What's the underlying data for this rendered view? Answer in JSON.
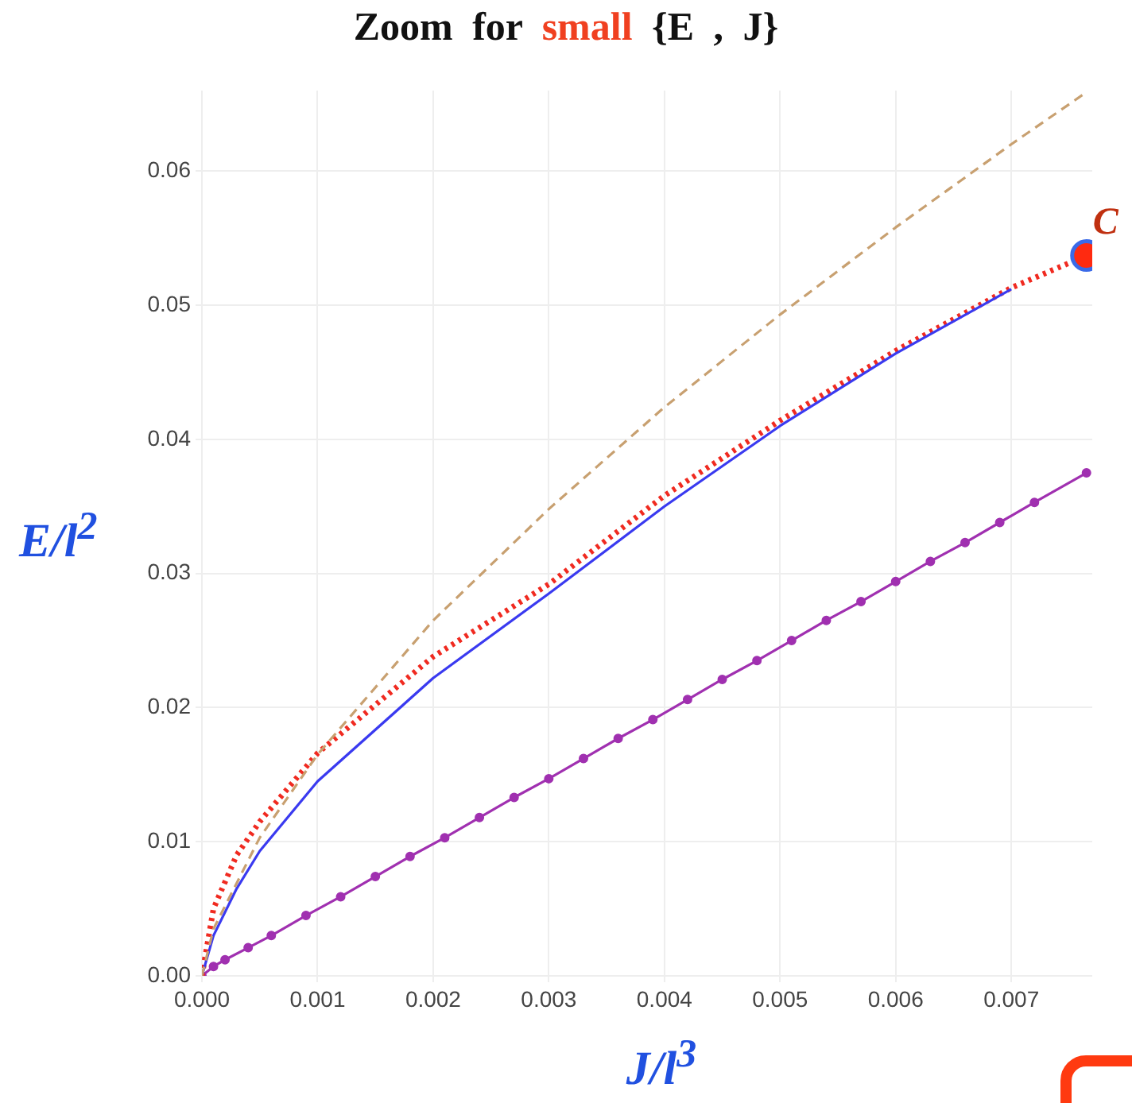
{
  "chart_data": {
    "type": "line",
    "title": "Zoom for small {E , J}",
    "xlabel": "J/l$^{3}$",
    "ylabel": "E/l$^{2}$",
    "xlim": [
      0,
      0.0077
    ],
    "ylim": [
      0,
      0.066
    ],
    "xticks": [
      {
        "value": 0,
        "label": "0.000"
      },
      {
        "value": 0.001,
        "label": "0.001"
      },
      {
        "value": 0.002,
        "label": "0.002"
      },
      {
        "value": 0.003,
        "label": "0.003"
      },
      {
        "value": 0.004,
        "label": "0.004"
      },
      {
        "value": 0.005,
        "label": "0.005"
      },
      {
        "value": 0.006,
        "label": "0.006"
      },
      {
        "value": 0.007,
        "label": "0.007"
      }
    ],
    "yticks": [
      {
        "value": 0,
        "label": "0.00"
      },
      {
        "value": 0.01,
        "label": "0.01"
      },
      {
        "value": 0.02,
        "label": "0.02"
      },
      {
        "value": 0.03,
        "label": "0.03"
      },
      {
        "value": 0.04,
        "label": "0.04"
      },
      {
        "value": 0.05,
        "label": "0.05"
      },
      {
        "value": 0.06,
        "label": "0.06"
      }
    ],
    "grid": true,
    "legend": false,
    "series": [
      {
        "color": "#c8a070",
        "line_style": "dashed",
        "marker": "none",
        "x": [
          0,
          0.0001,
          0.0005,
          0.001,
          0.002,
          0.003,
          0.004,
          0.005,
          0.006,
          0.007,
          0.00762
        ],
        "values": [
          0,
          0.0035,
          0.0103,
          0.0165,
          0.0265,
          0.0348,
          0.0424,
          0.0493,
          0.0558,
          0.062,
          0.0657
        ]
      },
      {
        "color": "#3a3af0",
        "line_style": "solid",
        "marker": "none",
        "x": [
          0,
          0.0001,
          0.0003,
          0.0005,
          0.001,
          0.002,
          0.003,
          0.004,
          0.005,
          0.006,
          0.007
        ],
        "values": [
          0,
          0.003,
          0.0065,
          0.0093,
          0.0145,
          0.0222,
          0.0285,
          0.035,
          0.041,
          0.0464,
          0.0512
        ]
      },
      {
        "color": "#f02a20",
        "line_style": "dotted",
        "marker": "none",
        "x": [
          0,
          0.0001,
          0.0003,
          0.0005,
          0.001,
          0.002,
          0.003,
          0.004,
          0.005,
          0.006,
          0.007,
          0.00765
        ],
        "values": [
          0,
          0.005,
          0.009,
          0.0115,
          0.0166,
          0.0238,
          0.0292,
          0.0358,
          0.0414,
          0.0466,
          0.0513,
          0.0537
        ]
      },
      {
        "color": "#a030b0",
        "line_style": "solid",
        "marker": "circle",
        "x": [
          0,
          0.0001,
          0.0002,
          0.0004,
          0.0006,
          0.0009,
          0.0012,
          0.0015,
          0.0018,
          0.0021,
          0.0024,
          0.0027,
          0.003,
          0.0033,
          0.0036,
          0.0039,
          0.0042,
          0.0045,
          0.0048,
          0.0051,
          0.0054,
          0.0057,
          0.006,
          0.0063,
          0.0066,
          0.0069,
          0.0072,
          0.00765
        ],
        "values": [
          0,
          0.0007,
          0.0012,
          0.0021,
          0.003,
          0.0045,
          0.0059,
          0.0074,
          0.0089,
          0.0103,
          0.0118,
          0.0133,
          0.0147,
          0.0162,
          0.0177,
          0.0191,
          0.0206,
          0.0221,
          0.0235,
          0.025,
          0.0265,
          0.0279,
          0.0294,
          0.0309,
          0.0323,
          0.0338,
          0.0353,
          0.0375
        ]
      },
      {
        "type": "scatter",
        "color": "#ff2a10",
        "marker": "circle",
        "x": [
          0.00765
        ],
        "values": [
          0.0537
        ]
      }
    ],
    "annotations": [
      {
        "text": "C",
        "x": 0.00765,
        "y": 0.0537
      }
    ]
  }
}
